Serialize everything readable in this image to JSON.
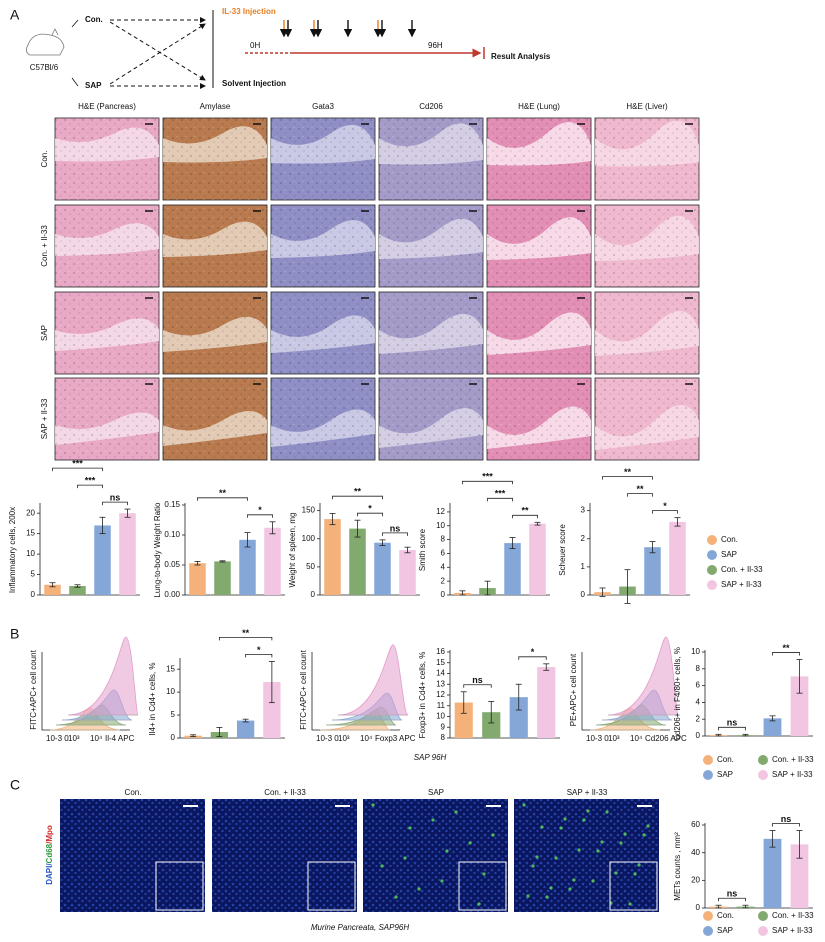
{
  "panel_labels": [
    "A",
    "B",
    "C"
  ],
  "schema": {
    "groups": [
      "Con.",
      "SAP"
    ],
    "strain": "C57Bl/6",
    "treatments": [
      "IL-33 Injection",
      "Solvent Injection"
    ],
    "timeline": [
      "0H",
      "96H"
    ],
    "result": "Result Analysis"
  },
  "histology": {
    "columns": [
      "H&E (Pancreas)",
      "Amylase",
      "Gata3",
      "Cd206",
      "H&E (Lung)",
      "H&E (Liver)"
    ],
    "rows": [
      "Con.",
      "Con. + Il-33",
      "SAP",
      "SAP + Il-33"
    ]
  },
  "flow_plots": [
    {
      "y_label": "FITC+APC+ cell count",
      "x_label": "Il-4 APC",
      "xticks": [
        "10-3 0",
        "10³",
        "10⁴"
      ]
    },
    {
      "y_label": "FITC+APC+ cell count",
      "x_label": "Foxp3 APC",
      "xticks": [
        "10-3 0",
        "10³",
        "10⁴"
      ]
    },
    {
      "y_label": "PE+APC+ cell count",
      "x_label": "Cd206 APC",
      "xticks": [
        "10-3 0",
        "10³",
        "10⁴"
      ]
    }
  ],
  "flow_caption": "SAP 96H",
  "if_panel": {
    "columns": [
      "Con.",
      "Con. + Il-33",
      "SAP",
      "SAP + Il-33"
    ],
    "stain_label": [
      "DAPI/",
      "Cd68",
      "/Mpo"
    ],
    "caption": "Murine Pancreata, SAP96H"
  },
  "legend": [
    {
      "label": "Con.",
      "color": "#f4b27a"
    },
    {
      "label": "SAP",
      "color": "#85a7d8"
    },
    {
      "label": "Con. + Il-33",
      "color": "#82a96e"
    },
    {
      "label": "SAP + Il-33",
      "color": "#f2c6e2"
    }
  ],
  "chart_data": [
    {
      "type": "bar",
      "y_label": "Inflammatory cells, 200x",
      "categories": [
        "Con.",
        "Con. + Il-33",
        "SAP",
        "SAP + Il-33"
      ],
      "colors": [
        "#f4b27a",
        "#82a96e",
        "#85a7d8",
        "#f2c6e2"
      ],
      "values": [
        2.5,
        2.2,
        17,
        20
      ],
      "errors": [
        0.5,
        0.3,
        2,
        1
      ],
      "ylim": [
        0,
        22
      ],
      "yticks": [
        0,
        5,
        10,
        15,
        20
      ],
      "annotations": [
        {
          "text": "***",
          "between": [
            "Con.",
            "SAP"
          ]
        },
        {
          "text": "***",
          "between": [
            "Con. + Il-33",
            "SAP"
          ]
        },
        {
          "text": "ns",
          "between": [
            "SAP",
            "SAP + Il-33"
          ]
        }
      ]
    },
    {
      "type": "bar",
      "y_label": "Lung-to-body Weight Ratio",
      "categories": [
        "Con.",
        "Con. + Il-33",
        "SAP",
        "SAP + Il-33"
      ],
      "colors": [
        "#f4b27a",
        "#82a96e",
        "#85a7d8",
        "#f2c6e2"
      ],
      "values": [
        0.053,
        0.056,
        0.092,
        0.112
      ],
      "errors": [
        0.003,
        0.001,
        0.012,
        0.01
      ],
      "ylim": [
        0,
        0.15
      ],
      "yticks": [
        {
          "value": 0,
          "label": "0.00"
        },
        {
          "value": 0.05,
          "label": "0.05"
        },
        {
          "value": 0.1,
          "label": "0.10"
        },
        {
          "value": 0.15,
          "label": "0.15"
        }
      ],
      "annotations": [
        {
          "text": "**",
          "between": [
            "Con.",
            "SAP"
          ]
        },
        {
          "text": "*",
          "between": [
            "SAP",
            "SAP + Il-33"
          ]
        }
      ]
    },
    {
      "type": "bar",
      "y_label": "Weight of spleen, mg",
      "categories": [
        "Con.",
        "Con. + Il-33",
        "SAP",
        "SAP + Il-33"
      ],
      "colors": [
        "#f4b27a",
        "#82a96e",
        "#85a7d8",
        "#f2c6e2"
      ],
      "values": [
        135,
        118,
        93,
        80
      ],
      "errors": [
        10,
        15,
        5,
        5
      ],
      "ylim": [
        0,
        160
      ],
      "yticks": [
        0,
        50,
        100,
        150
      ],
      "annotations": [
        {
          "text": "**",
          "between": [
            "Con.",
            "SAP"
          ]
        },
        {
          "text": "*",
          "between": [
            "Con. + Il-33",
            "SAP"
          ]
        },
        {
          "text": "ns",
          "between": [
            "SAP",
            "SAP + Il-33"
          ]
        }
      ]
    },
    {
      "type": "bar",
      "y_label": "Smith score",
      "categories": [
        "Con.",
        "Con. + Il-33",
        "SAP",
        "SAP + Il-33"
      ],
      "colors": [
        "#f4b27a",
        "#82a96e",
        "#85a7d8",
        "#f2c6e2"
      ],
      "values": [
        0.3,
        1,
        7.5,
        10.3
      ],
      "errors": [
        0.3,
        1,
        0.8,
        0.2
      ],
      "ylim": [
        0,
        13
      ],
      "yticks": [
        0,
        2,
        4,
        6,
        8,
        10,
        12
      ],
      "annotations": [
        {
          "text": "***",
          "between": [
            "Con.",
            "SAP"
          ]
        },
        {
          "text": "***",
          "between": [
            "Con. + Il-33",
            "SAP"
          ]
        },
        {
          "text": "**",
          "between": [
            "SAP",
            "SAP + Il-33"
          ]
        }
      ]
    },
    {
      "type": "bar",
      "y_label": "Scheuer score",
      "categories": [
        "Con.",
        "Con. + Il-33",
        "SAP",
        "SAP + Il-33"
      ],
      "colors": [
        "#f4b27a",
        "#82a96e",
        "#85a7d8",
        "#f2c6e2"
      ],
      "values": [
        0.1,
        0.3,
        1.7,
        2.6
      ],
      "errors": [
        0.15,
        0.6,
        0.2,
        0.15
      ],
      "ylim": [
        0,
        3.2
      ],
      "yticks": [
        0,
        1,
        2,
        3
      ],
      "annotations": [
        {
          "text": "**",
          "between": [
            "Con.",
            "SAP"
          ]
        },
        {
          "text": "**",
          "between": [
            "Con. + Il-33",
            "SAP"
          ]
        },
        {
          "text": "*",
          "between": [
            "SAP",
            "SAP + Il-33"
          ]
        }
      ]
    },
    {
      "type": "bar",
      "y_label": "Il4+ in Cd4+ cells, %",
      "categories": [
        "Con.",
        "Con. + Il-33",
        "SAP",
        "SAP + Il-33"
      ],
      "colors": [
        "#f4b27a",
        "#82a96e",
        "#85a7d8",
        "#f2c6e2"
      ],
      "values": [
        0.5,
        1.3,
        3.8,
        12.2
      ],
      "errors": [
        0.2,
        1,
        0.3,
        4.5
      ],
      "ylim": [
        0,
        17
      ],
      "yticks": [
        0,
        5,
        10,
        15
      ],
      "annotations": [
        {
          "text": "**",
          "between": [
            "Con. + Il-33",
            "SAP + Il-33"
          ]
        },
        {
          "text": "*",
          "between": [
            "SAP",
            "SAP + Il-33"
          ]
        }
      ]
    },
    {
      "type": "bar",
      "y_label": "Foxp3+ in Cd4+ cells, %",
      "categories": [
        "Con.",
        "Con. + Il-33",
        "SAP",
        "SAP + Il-33"
      ],
      "colors": [
        "#f4b27a",
        "#82a96e",
        "#85a7d8",
        "#f2c6e2"
      ],
      "values": [
        11.3,
        10.4,
        11.8,
        14.6
      ],
      "errors": [
        1,
        1,
        1.2,
        0.3
      ],
      "ylim": [
        8,
        16
      ],
      "yticks": [
        8,
        9,
        10,
        11,
        12,
        13,
        14,
        15,
        16
      ],
      "annotations": [
        {
          "text": "ns",
          "between": [
            "Con.",
            "Con. + Il-33"
          ]
        },
        {
          "text": "*",
          "between": [
            "SAP",
            "SAP + Il-33"
          ]
        }
      ]
    },
    {
      "type": "bar",
      "y_label": "Cd206+ in F4/80+ cells, %",
      "categories": [
        "Con.",
        "Con. + Il-33",
        "SAP",
        "SAP + Il-33"
      ],
      "colors": [
        "#f4b27a",
        "#82a96e",
        "#85a7d8",
        "#f2c6e2"
      ],
      "values": [
        0.1,
        0.1,
        2.1,
        7.1
      ],
      "errors": [
        0.1,
        0.1,
        0.3,
        2
      ],
      "ylim": [
        0,
        10
      ],
      "yticks": [
        0,
        2,
        4,
        6,
        8,
        10
      ],
      "annotations": [
        {
          "text": "ns",
          "between": [
            "Con.",
            "Con. + Il-33"
          ]
        },
        {
          "text": "**",
          "between": [
            "SAP",
            "SAP + Il-33"
          ]
        }
      ]
    },
    {
      "type": "bar",
      "y_label": "METs counts , mm²",
      "categories": [
        "Con.",
        "Con. + Il-33",
        "SAP",
        "SAP + Il-33"
      ],
      "colors": [
        "#f4b27a",
        "#82a96e",
        "#85a7d8",
        "#f2c6e2"
      ],
      "values": [
        1,
        1,
        50,
        46
      ],
      "errors": [
        1,
        1,
        6,
        10
      ],
      "ylim": [
        0,
        60
      ],
      "yticks": [
        0,
        20,
        40,
        60
      ],
      "annotations": [
        {
          "text": "ns",
          "between": [
            "Con.",
            "Con. + Il-33"
          ]
        },
        {
          "text": "ns",
          "between": [
            "SAP",
            "SAP + Il-33"
          ]
        }
      ]
    }
  ]
}
